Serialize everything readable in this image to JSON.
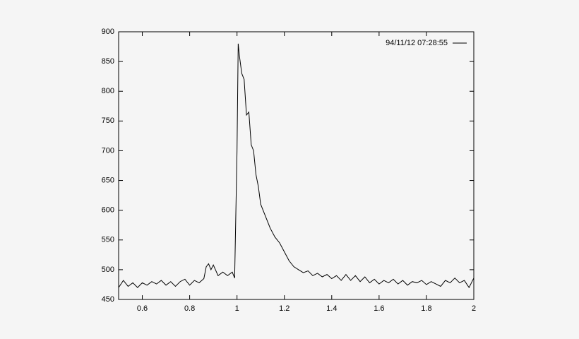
{
  "chart_data": {
    "type": "line",
    "x": [
      0.5,
      0.52,
      0.54,
      0.56,
      0.58,
      0.6,
      0.62,
      0.64,
      0.66,
      0.68,
      0.7,
      0.72,
      0.74,
      0.76,
      0.78,
      0.8,
      0.82,
      0.84,
      0.86,
      0.87,
      0.88,
      0.89,
      0.9,
      0.92,
      0.94,
      0.96,
      0.98,
      0.99,
      1.0,
      1.005,
      1.01,
      1.02,
      1.03,
      1.04,
      1.05,
      1.06,
      1.07,
      1.08,
      1.09,
      1.1,
      1.12,
      1.14,
      1.16,
      1.18,
      1.2,
      1.22,
      1.24,
      1.26,
      1.28,
      1.3,
      1.32,
      1.34,
      1.36,
      1.38,
      1.4,
      1.42,
      1.44,
      1.46,
      1.48,
      1.5,
      1.52,
      1.54,
      1.56,
      1.58,
      1.6,
      1.62,
      1.64,
      1.66,
      1.68,
      1.7,
      1.72,
      1.74,
      1.76,
      1.78,
      1.8,
      1.82,
      1.84,
      1.86,
      1.88,
      1.9,
      1.92,
      1.94,
      1.96,
      1.98,
      2.0
    ],
    "series": [
      {
        "name": "94/11/12 07:28:55",
        "color": "#000000",
        "values": [
          470,
          482,
          472,
          478,
          470,
          478,
          474,
          480,
          476,
          482,
          474,
          480,
          472,
          480,
          484,
          474,
          482,
          478,
          485,
          505,
          510,
          500,
          508,
          490,
          496,
          490,
          496,
          486,
          700,
          880,
          860,
          830,
          820,
          760,
          765,
          710,
          700,
          660,
          640,
          610,
          590,
          570,
          555,
          545,
          530,
          515,
          505,
          500,
          495,
          498,
          490,
          494,
          488,
          492,
          485,
          490,
          482,
          492,
          482,
          490,
          480,
          488,
          478,
          484,
          476,
          482,
          478,
          484,
          476,
          482,
          474,
          480,
          478,
          482,
          475,
          480,
          476,
          472,
          482,
          478,
          486,
          478,
          482,
          470,
          486
        ]
      }
    ],
    "xlim": [
      0.5,
      2
    ],
    "ylim": [
      450,
      900
    ],
    "xticks": [
      0.6,
      0.8,
      1,
      1.2,
      1.4,
      1.6,
      1.8,
      2
    ],
    "yticks": [
      450,
      500,
      550,
      600,
      650,
      700,
      750,
      800,
      850,
      900
    ],
    "legend": "top-right"
  }
}
